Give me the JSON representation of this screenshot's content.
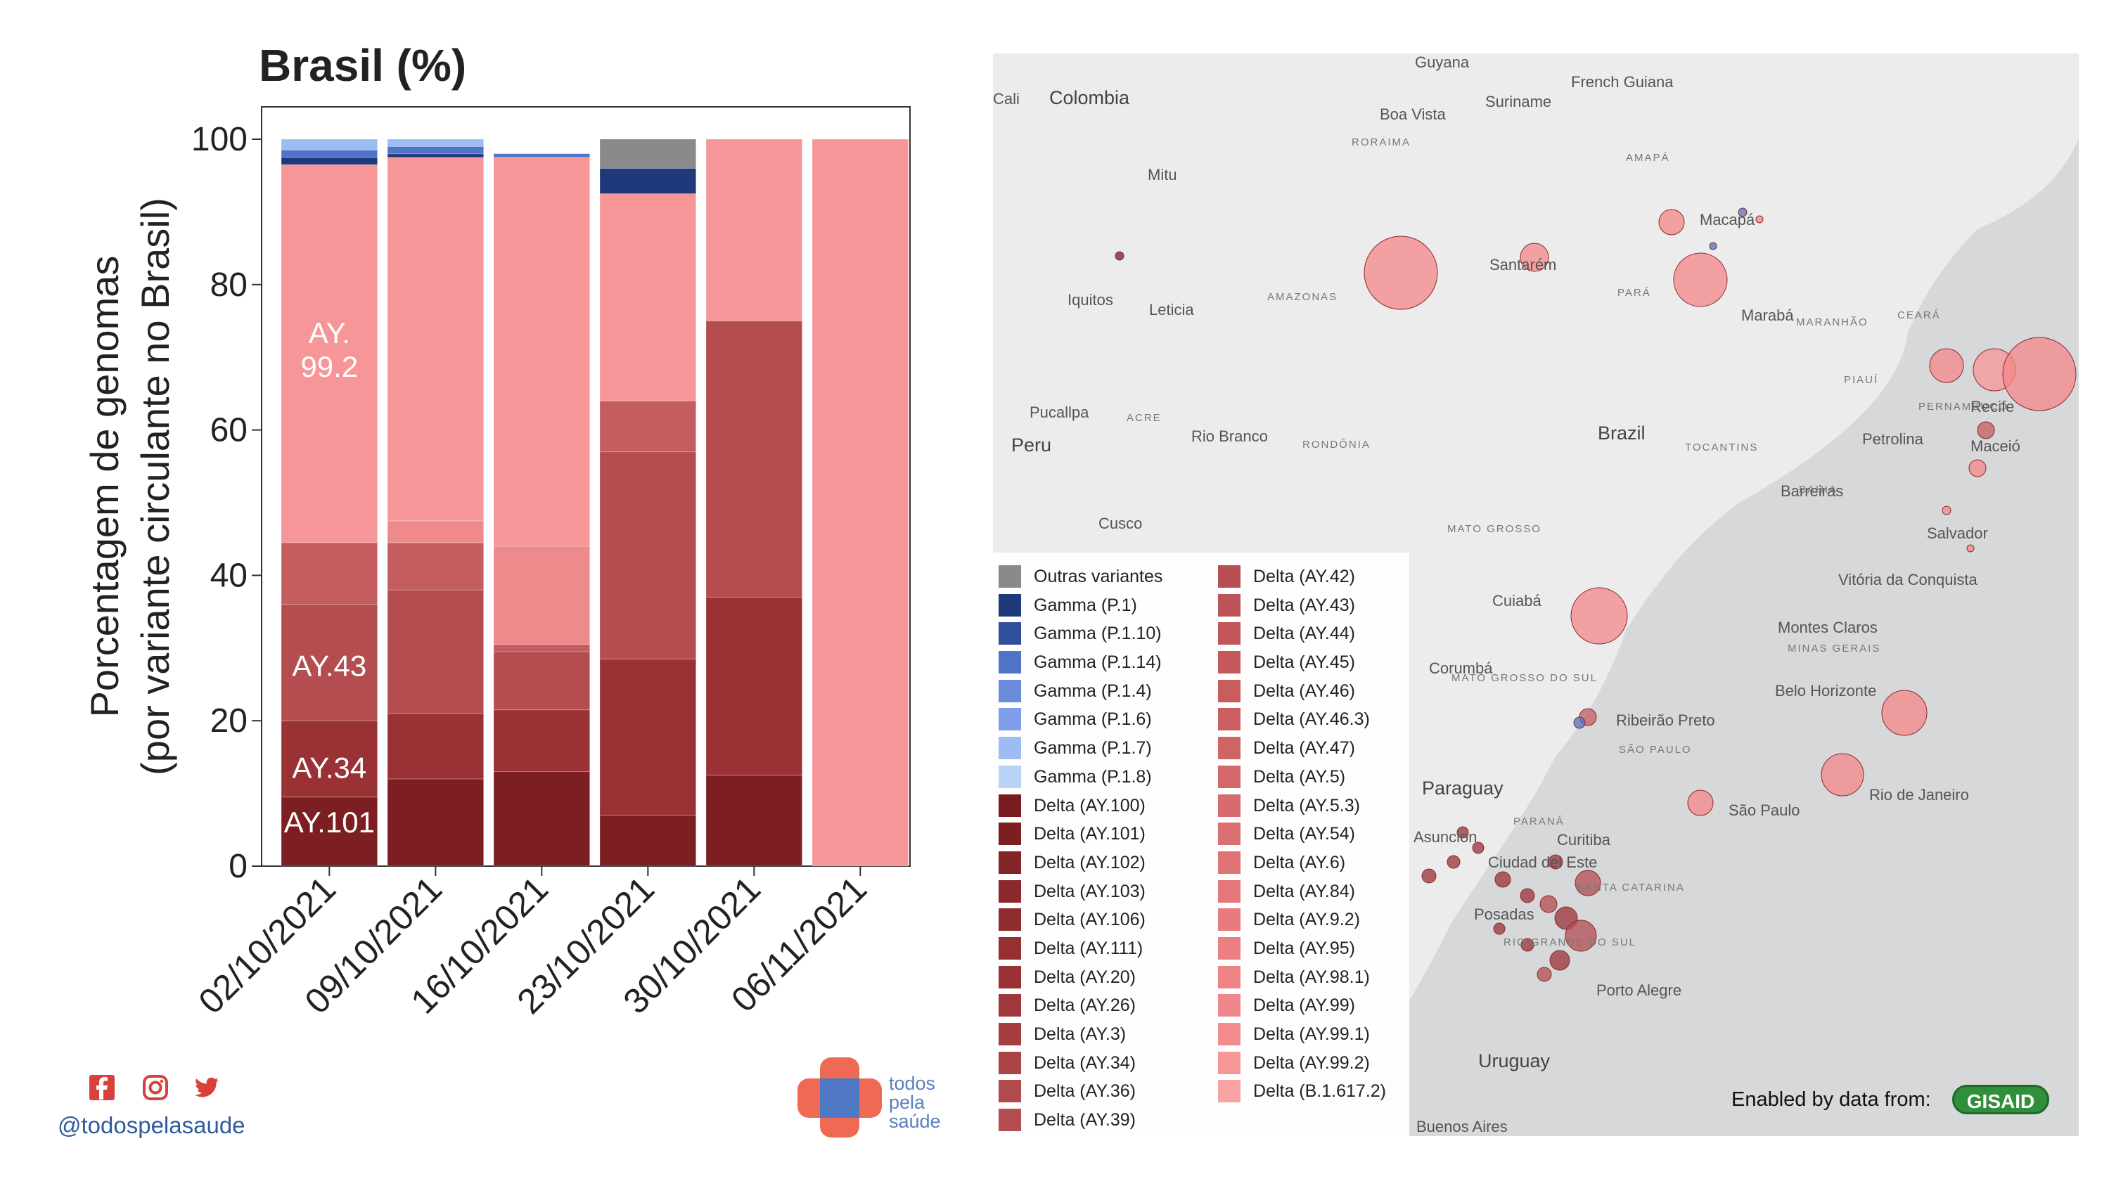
{
  "chart_data": {
    "type": "bar",
    "stacked": true,
    "title": "Brasil (%)",
    "ylabel": "Porcentagem de genomas\n(por variante circulante no Brasil)",
    "ylim": [
      0,
      100
    ],
    "yticks": [
      0,
      20,
      40,
      60,
      80,
      100
    ],
    "categories": [
      "02/10/2021",
      "09/10/2021",
      "16/10/2021",
      "23/10/2021",
      "30/10/2021",
      "06/11/2021"
    ],
    "series": [
      {
        "name": "Delta (AY.101)",
        "color": "#7d1f22",
        "values": [
          9.5,
          12,
          13,
          7,
          12.5,
          0
        ]
      },
      {
        "name": "Delta (AY.34)",
        "color": "#9a3235",
        "values": [
          10.5,
          9,
          8.5,
          21.5,
          24.5,
          0
        ]
      },
      {
        "name": "Delta (AY.43)",
        "color": "#b44d50",
        "values": [
          16,
          17,
          8,
          28.5,
          38,
          0
        ]
      },
      {
        "name": "Delta (AY.46.3)",
        "color": "#c55c5f",
        "values": [
          8.5,
          6.5,
          1,
          7,
          0,
          0
        ]
      },
      {
        "name": "Delta (AY.99)",
        "color": "#ee8a8c",
        "values": [
          0,
          3,
          13.5,
          0,
          0,
          0
        ]
      },
      {
        "name": "Delta (AY.99.2)",
        "color": "#f79698",
        "values": [
          52,
          50,
          53.5,
          28.5,
          25,
          100
        ]
      },
      {
        "name": "Gamma (P.1)",
        "color": "#1e3a7a",
        "values": [
          1,
          0.5,
          0,
          3.5,
          0,
          0
        ]
      },
      {
        "name": "Gamma (P.1.14)",
        "color": "#4f73c6",
        "values": [
          1,
          1,
          0.5,
          0,
          0,
          0
        ]
      },
      {
        "name": "Gamma (P.1.7)",
        "color": "#9dbcf3",
        "values": [
          1.5,
          1,
          0,
          0,
          0,
          0
        ]
      },
      {
        "name": "Outras variantes",
        "color": "#8a8a8a",
        "values": [
          0,
          0,
          0,
          4,
          0,
          0
        ]
      }
    ],
    "annotations": [
      {
        "text": "AY.\n99.2",
        "category": "02/10/2021",
        "y": 71
      },
      {
        "text": "AY.43",
        "category": "02/10/2021",
        "y": 27.5
      },
      {
        "text": "AY.34",
        "category": "02/10/2021",
        "y": 13.5
      },
      {
        "text": "AY.101",
        "category": "02/10/2021",
        "y": 6
      }
    ]
  },
  "legend": {
    "col1": [
      {
        "label": "Outras variantes",
        "color": "#8a8a8a"
      },
      {
        "label": "Gamma (P.1)",
        "color": "#1e3a7a"
      },
      {
        "label": "Gamma (P.1.10)",
        "color": "#2f4f9a"
      },
      {
        "label": "Gamma (P.1.14)",
        "color": "#4f73c6"
      },
      {
        "label": "Gamma (P.1.4)",
        "color": "#6c8ddb"
      },
      {
        "label": "Gamma (P.1.6)",
        "color": "#7f9fe8"
      },
      {
        "label": "Gamma (P.1.7)",
        "color": "#9dbcf3"
      },
      {
        "label": "Gamma (P.1.8)",
        "color": "#b9d2f8"
      },
      {
        "label": "Delta (AY.100)",
        "color": "#7a1c1f"
      },
      {
        "label": "Delta (AY.101)",
        "color": "#7d1f22"
      },
      {
        "label": "Delta (AY.102)",
        "color": "#842427"
      },
      {
        "label": "Delta (AY.103)",
        "color": "#8a282b"
      },
      {
        "label": "Delta (AY.106)",
        "color": "#902c2f"
      },
      {
        "label": "Delta (AY.111)",
        "color": "#963033"
      },
      {
        "label": "Delta (AY.20)",
        "color": "#9a3235"
      },
      {
        "label": "Delta (AY.26)",
        "color": "#a0383b"
      },
      {
        "label": "Delta (AY.3)",
        "color": "#a63e41"
      },
      {
        "label": "Delta (AY.34)",
        "color": "#ab4447"
      },
      {
        "label": "Delta (AY.36)",
        "color": "#b04a4d"
      },
      {
        "label": "Delta (AY.39)",
        "color": "#b44d50"
      }
    ],
    "col2": [
      {
        "label": "Delta (AY.42)",
        "color": "#b85053"
      },
      {
        "label": "Delta (AY.43)",
        "color": "#bc5356"
      },
      {
        "label": "Delta (AY.44)",
        "color": "#c05659"
      },
      {
        "label": "Delta (AY.45)",
        "color": "#c4595c"
      },
      {
        "label": "Delta (AY.46)",
        "color": "#c85c5f"
      },
      {
        "label": "Delta (AY.46.3)",
        "color": "#cc5f62"
      },
      {
        "label": "Delta (AY.47)",
        "color": "#d06366"
      },
      {
        "label": "Delta (AY.5)",
        "color": "#d4676a"
      },
      {
        "label": "Delta (AY.5.3)",
        "color": "#d86b6e"
      },
      {
        "label": "Delta (AY.54)",
        "color": "#dc6f72"
      },
      {
        "label": "Delta (AY.6)",
        "color": "#e07376"
      },
      {
        "label": "Delta (AY.84)",
        "color": "#e4777a"
      },
      {
        "label": "Delta (AY.9.2)",
        "color": "#e87b7e"
      },
      {
        "label": "Delta (AY.95)",
        "color": "#eb7f82"
      },
      {
        "label": "Delta (AY.98.1)",
        "color": "#ee8386"
      },
      {
        "label": "Delta (AY.99)",
        "color": "#f1878a"
      },
      {
        "label": "Delta (AY.99.1)",
        "color": "#f48b8e"
      },
      {
        "label": "Delta (AY.99.2)",
        "color": "#f79698"
      },
      {
        "label": "Delta (B.1.617.2)",
        "color": "#f9a3a5"
      }
    ]
  },
  "map": {
    "countries": [
      {
        "name": "Colombia",
        "big": true
      },
      {
        "name": "Brazil",
        "big": true
      },
      {
        "name": "Peru",
        "big": true
      },
      {
        "name": "Paraguay",
        "big": true
      },
      {
        "name": "Uruguay",
        "big": true
      }
    ],
    "places": [
      "Suriname",
      "French Guiana",
      "Guyana",
      "Cali",
      "Boa Vista",
      "Mitu",
      "Iquitos",
      "Leticia",
      "Santarém",
      "Macapá",
      "Marabá",
      "Pucallpa",
      "Rio Branco",
      "Cusco",
      "Cuiabá",
      "Corumbá",
      "Barreiras",
      "Petrolina",
      "Maceió",
      "Recife",
      "Salvador",
      "Vitória da Conquista",
      "Montes Claros",
      "Belo Horizonte",
      "Ribeirão Preto",
      "São Paulo",
      "Rio de Janeiro",
      "Curitiba",
      "Asuncion",
      "Ciudad del Este",
      "Posadas",
      "Porto Alegre",
      "Buenos Aires"
    ],
    "states": [
      "RORAIMA",
      "AMAPÁ",
      "AMAZONAS",
      "PARÁ",
      "MARANHÃO",
      "CEARÁ",
      "PIAUÍ",
      "PERNAMBUCO",
      "ACRE",
      "RONDÔNIA",
      "TOCANTINS",
      "BAHIA",
      "MATO GROSSO",
      "MATO GROSSO DO SUL",
      "MINAS GERAIS",
      "SÃO PAULO",
      "PARANÁ",
      "SANTA CATARINA",
      "RIO GRANDE DO SUL"
    ],
    "note": "Enabled by data from:",
    "logo": "GISAID"
  },
  "footer": {
    "handle": "@todospelasaude",
    "logo_text": [
      "todos",
      "pela",
      "saúde"
    ],
    "icons": [
      "facebook-icon",
      "instagram-icon",
      "twitter-icon"
    ]
  }
}
